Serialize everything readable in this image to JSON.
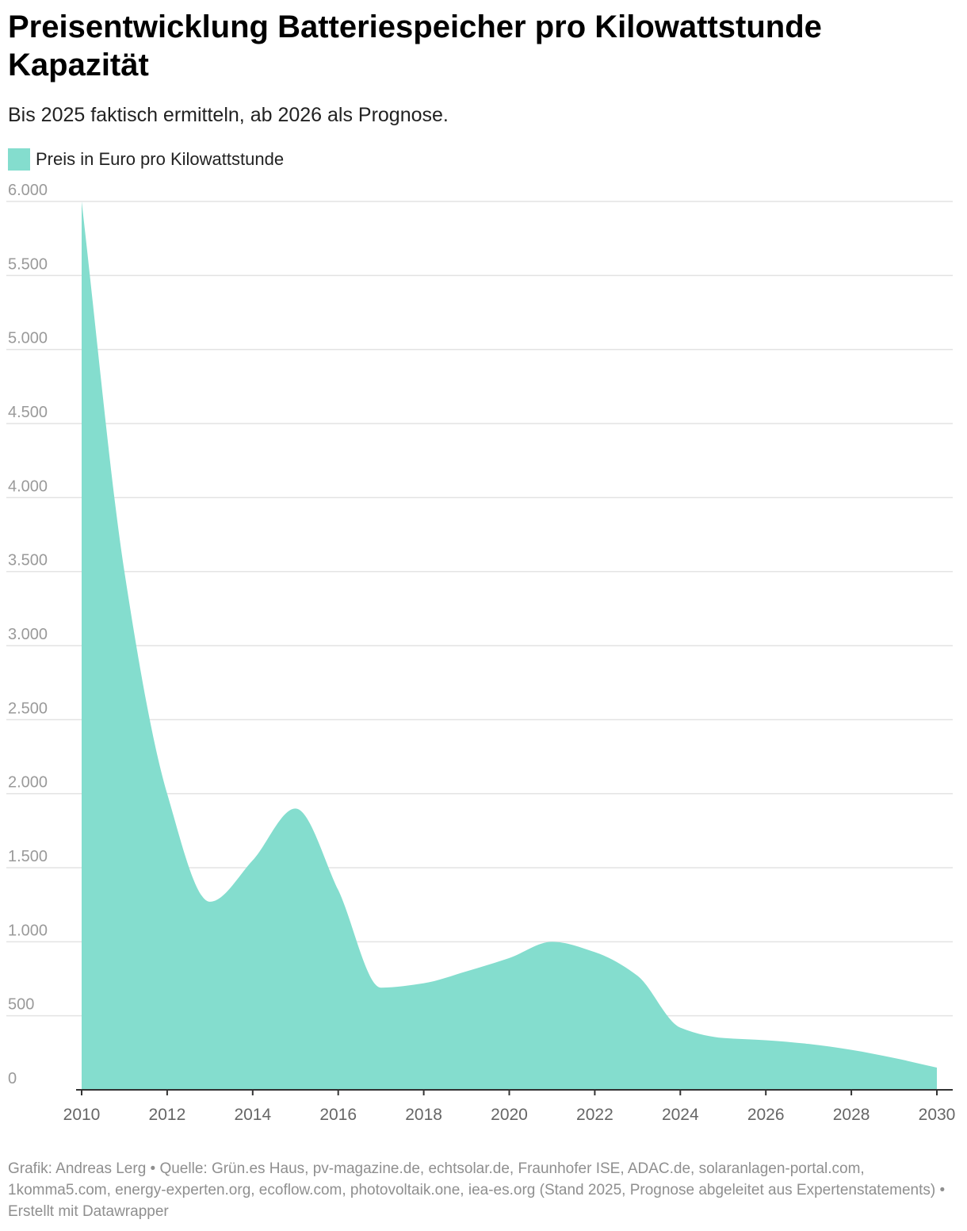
{
  "title": "Preisentwicklung Batteriespeicher pro Kilowattstunde Kapazität",
  "subtitle": "Bis 2025 faktisch ermitteln, ab 2026 als Prognose.",
  "footer": "Grafik: Andreas Lerg • Quelle: Grün.es Haus, pv-magazine.de, echtsolar.de, Fraunhofer ISE, ADAC.de, solaranlagen-portal.com, 1komma5.com, energy-experten.org, ecoflow.com, photovoltaik.one, iea-es.org (Stand 2025, Prognose abgeleitet aus Expertenstatements) • Erstellt mit Datawrapper",
  "colors": {
    "area": "#84ddce",
    "grid": "#e3e3e3",
    "axis": "#333333"
  },
  "chart_data": {
    "type": "area",
    "title": "Preisentwicklung Batteriespeicher pro Kilowattstunde Kapazität",
    "subtitle": "Bis 2025 faktisch ermitteln, ab 2026 als Prognose.",
    "xlabel": "",
    "ylabel": "",
    "ylim": [
      0,
      6000
    ],
    "xlim": [
      2010,
      2030
    ],
    "grid": true,
    "legend": "top-left",
    "yticks": [
      0,
      500,
      1000,
      1500,
      2000,
      2500,
      3000,
      3500,
      4000,
      4500,
      5000,
      5500,
      6000
    ],
    "ytick_labels": [
      "0",
      "500",
      "1.000",
      "1.500",
      "2.000",
      "2.500",
      "3.000",
      "3.500",
      "4.000",
      "4.500",
      "5.000",
      "5.500",
      "6.000"
    ],
    "xticks": [
      2010,
      2012,
      2014,
      2016,
      2018,
      2020,
      2022,
      2024,
      2026,
      2028,
      2030
    ],
    "xtick_labels": [
      "2010",
      "2012",
      "2014",
      "2016",
      "2018",
      "2020",
      "2022",
      "2024",
      "2026",
      "2028",
      "2030"
    ],
    "series": [
      {
        "name": "Preis in Euro pro Kilowattstunde",
        "color": "#84ddce",
        "x": [
          2010,
          2011,
          2012,
          2013,
          2014,
          2015,
          2016,
          2017,
          2018,
          2019,
          2020,
          2021,
          2022,
          2023,
          2024,
          2025,
          2026,
          2027,
          2028,
          2029,
          2030
        ],
        "values": [
          6000,
          3500,
          2000,
          1270,
          1550,
          1900,
          1350,
          690,
          720,
          800,
          890,
          1000,
          930,
          770,
          420,
          350,
          335,
          310,
          270,
          215,
          150
        ]
      }
    ]
  }
}
